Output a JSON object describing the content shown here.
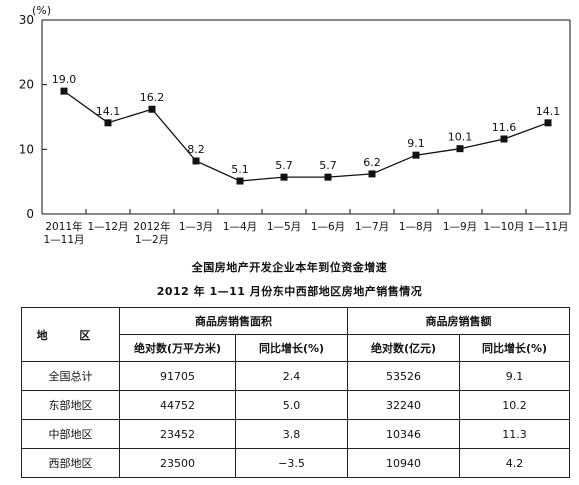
{
  "chart_data": {
    "type": "line",
    "ylabel": "(%)",
    "ylim": [
      0,
      30
    ],
    "yticks": [
      0,
      10,
      20,
      30
    ],
    "grid": false,
    "categories": [
      [
        "2011年",
        "1—11月"
      ],
      [
        "1—12月"
      ],
      [
        "2012年",
        "1—2月"
      ],
      [
        "1—3月"
      ],
      [
        "1—4月"
      ],
      [
        "1—5月"
      ],
      [
        "1—6月"
      ],
      [
        "1—7月"
      ],
      [
        "1—8月"
      ],
      [
        "1—9月"
      ],
      [
        "1—10月"
      ],
      [
        "1—11月"
      ]
    ],
    "values": [
      19.0,
      14.1,
      16.2,
      8.2,
      5.1,
      5.7,
      5.7,
      6.2,
      9.1,
      10.1,
      11.6,
      14.1
    ],
    "value_labels": [
      "19.0",
      "14.1",
      "16.2",
      "8.2",
      "5.1",
      "5.7",
      "5.7",
      "6.2",
      "9.1",
      "10.1",
      "11.6",
      "14.1"
    ]
  },
  "chart_title": "全国房地产开发企业本年到位资金增速",
  "table": {
    "title": "2012 年 1—11 月份东中西部地区房地产销售情况",
    "region_header": "地 区",
    "group_area": "商品房销售面积",
    "group_amount": "商品房销售额",
    "sub_headers": [
      "绝对数(万平方米)",
      "同比增长(%)",
      "绝对数(亿元)",
      "同比增长(%)"
    ],
    "rows": [
      [
        "全国总计",
        "91705",
        "2.4",
        "53526",
        "9.1"
      ],
      [
        "东部地区",
        "44752",
        "5.0",
        "32240",
        "10.2"
      ],
      [
        "中部地区",
        "23452",
        "3.8",
        "10346",
        "11.3"
      ],
      [
        "西部地区",
        "23500",
        "−3.5",
        "10940",
        "4.2"
      ]
    ]
  }
}
